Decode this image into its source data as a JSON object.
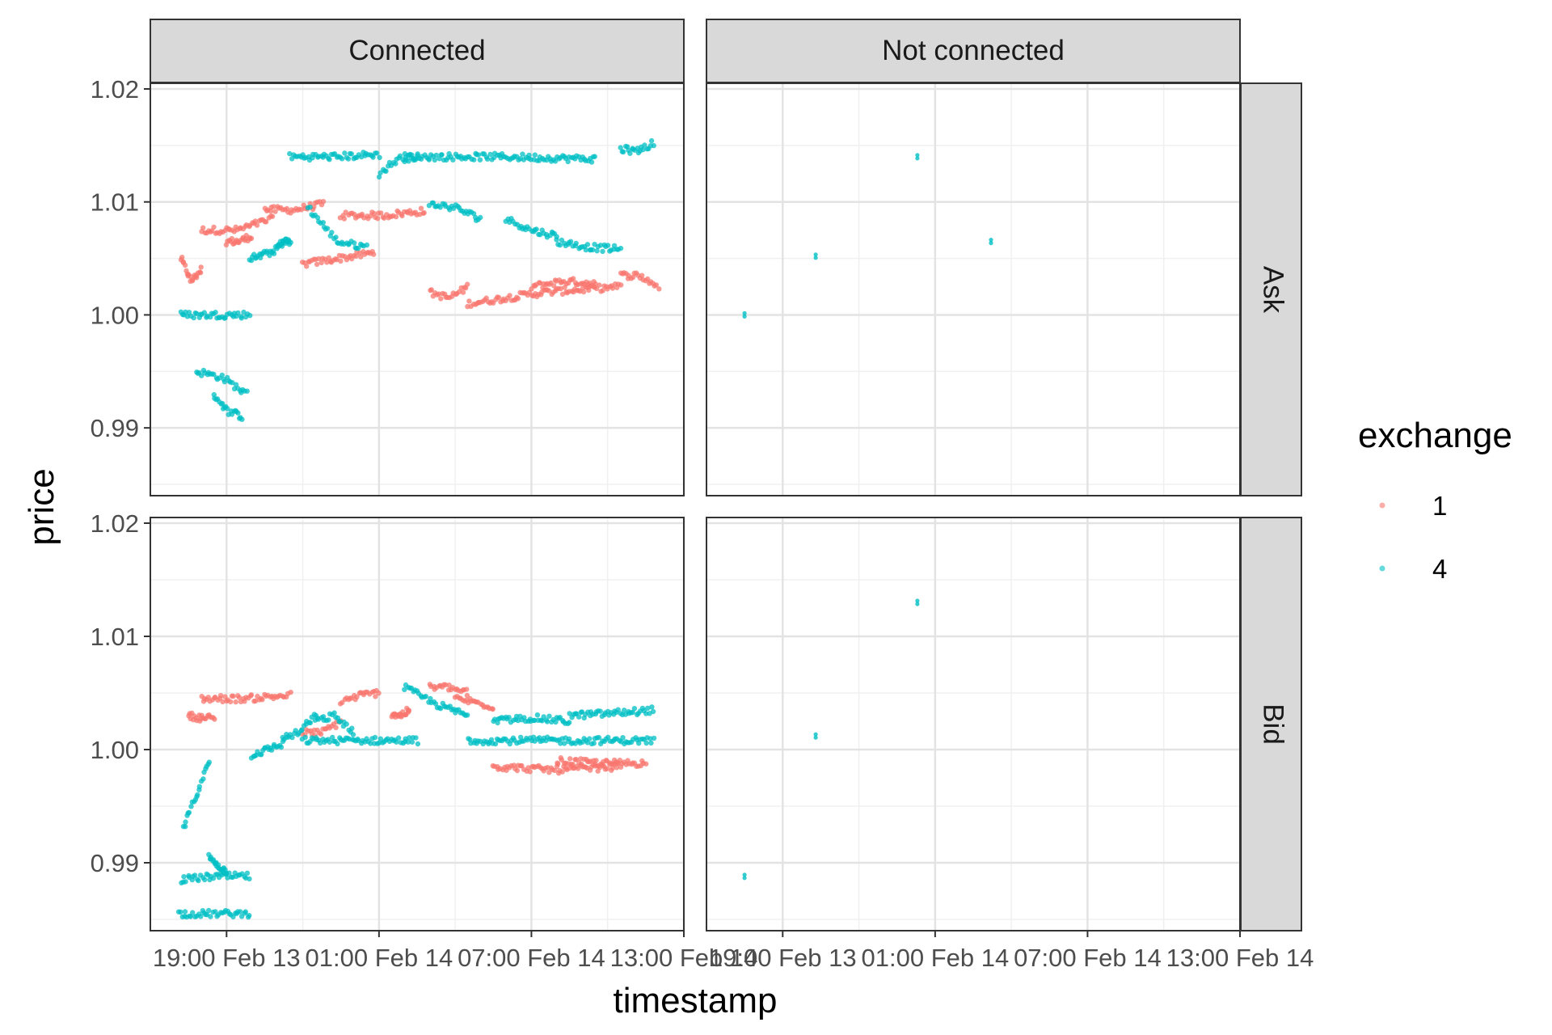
{
  "chart_data": {
    "type": "scatter",
    "facet_columns": [
      "Connected",
      "Not connected"
    ],
    "facet_rows": [
      "Ask",
      "Bid"
    ],
    "xlabel": "timestamp",
    "ylabel": "price",
    "x_ticks": [
      "19:00 Feb 13",
      "01:00 Feb 14",
      "07:00 Feb 14",
      "13:00 Feb 14"
    ],
    "y_ticks": [
      "0.99",
      "1.00",
      "1.01",
      "1.02"
    ],
    "ylim": [
      0.984,
      1.0205
    ],
    "legend": {
      "title": "exchange",
      "position": "right",
      "entries": [
        {
          "name": "1",
          "color": "#F8766D"
        },
        {
          "name": "4",
          "color": "#00BFC4"
        }
      ]
    },
    "panels": [
      {
        "col": "Connected",
        "row": "Ask",
        "series": [
          {
            "name": "1",
            "segments": [
              [
                0.2,
                1.005,
                1.0,
                1.003,
                1.004
              ],
              [
                1.0,
                1.0075,
                3.8,
                1.0075,
                1.0085
              ],
              [
                2.0,
                1.0065,
                3.0,
                1.0065,
                1.007
              ],
              [
                3.5,
                1.0093,
                5.8,
                1.0093,
                1.0098
              ],
              [
                5.0,
                1.0045,
                7.8,
                1.005,
                1.0055
              ],
              [
                6.5,
                1.0088,
                9.8,
                1.0088,
                1.0092
              ],
              [
                10.0,
                1.002,
                11.5,
                1.0015,
                1.0025
              ],
              [
                11.5,
                1.001,
                17.5,
                1.002,
                1.0025
              ],
              [
                14.0,
                1.0025,
                16.5,
                1.003,
                1.0028
              ],
              [
                17.5,
                1.0035,
                19.0,
                1.0035,
                1.0025
              ]
            ]
          },
          {
            "name": "4",
            "segments": [
              [
                0.2,
                1.0,
                2.9,
                1.0,
                1.0
              ],
              [
                0.8,
                0.995,
                2.8,
                0.9945,
                0.993
              ],
              [
                1.5,
                0.993,
                2.6,
                0.9915,
                0.991
              ],
              [
                2.9,
                1.005,
                4.0,
                1.0053,
                1.0058
              ],
              [
                4.0,
                1.006,
                4.5,
                1.0065,
                1.0065
              ],
              [
                4.5,
                1.014,
                8.0,
                1.014,
                1.0142
              ],
              [
                5.2,
                1.0095,
                7.5,
                1.0065,
                1.006
              ],
              [
                8.0,
                1.0125,
                9.5,
                1.0138,
                1.014
              ],
              [
                9.0,
                1.014,
                16.5,
                1.014,
                1.0138
              ],
              [
                10.0,
                1.0098,
                12.0,
                1.0095,
                1.0085
              ],
              [
                13.0,
                1.0085,
                15.0,
                1.0075,
                1.007
              ],
              [
                15.0,
                1.0065,
                17.5,
                1.006,
                1.0058
              ],
              [
                17.5,
                1.0147,
                18.8,
                1.0145,
                1.0152
              ]
            ]
          }
        ]
      },
      {
        "col": "Connected",
        "row": "Bid",
        "series": [
          {
            "name": "1",
            "segments": [
              [
                0.5,
                1.003,
                1.5,
                1.0028,
                1.0028
              ],
              [
                1.0,
                1.0045,
                4.5,
                1.0045,
                1.0048
              ],
              [
                5.0,
                1.0015,
                6.5,
                1.0015,
                1.0025
              ],
              [
                6.5,
                1.0042,
                8.0,
                1.0048,
                1.005
              ],
              [
                8.5,
                1.0032,
                9.2,
                1.003,
                1.0035
              ],
              [
                10.0,
                1.0055,
                11.5,
                1.0055,
                1.005
              ],
              [
                11.0,
                1.0045,
                12.5,
                1.0042,
                1.0038
              ],
              [
                12.5,
                0.9985,
                17.5,
                0.9982,
                0.9985
              ],
              [
                15.0,
                0.999,
                18.5,
                0.9988,
                0.9988
              ]
            ]
          },
          {
            "name": "4",
            "segments": [
              [
                0.1,
                0.9855,
                2.9,
                0.9855,
                0.9855
              ],
              [
                0.2,
                0.9885,
                2.9,
                0.9888,
                0.9888
              ],
              [
                0.3,
                0.993,
                1.3,
                0.996,
                0.999
              ],
              [
                1.3,
                0.9905,
                2.0,
                0.9898,
                0.9892
              ],
              [
                3.0,
                0.9995,
                4.2,
                1.0,
                1.0005
              ],
              [
                4.2,
                1.001,
                5.5,
                1.0015,
                1.003
              ],
              [
                5.0,
                1.0008,
                9.5,
                1.0008,
                1.0008
              ],
              [
                5.5,
                1.0025,
                7.0,
                1.003,
                1.0015
              ],
              [
                9.0,
                1.0055,
                11.5,
                1.004,
                1.003
              ],
              [
                11.5,
                1.0008,
                18.8,
                1.0008,
                1.0008
              ],
              [
                12.5,
                1.0025,
                15.5,
                1.0028,
                1.0025
              ],
              [
                15.5,
                1.003,
                18.8,
                1.0032,
                1.0035
              ]
            ]
          }
        ]
      },
      {
        "col": "Not connected",
        "row": "Ask",
        "points": [
          {
            "series": "4",
            "x": 0.5,
            "y": 1.0
          },
          {
            "series": "4",
            "x": 3.3,
            "y": 1.0052
          },
          {
            "series": "4",
            "x": 7.3,
            "y": 1.014
          },
          {
            "series": "4",
            "x": 10.2,
            "y": 1.0065
          }
        ]
      },
      {
        "col": "Not connected",
        "row": "Bid",
        "points": [
          {
            "series": "4",
            "x": 0.5,
            "y": 0.9888
          },
          {
            "series": "4",
            "x": 3.3,
            "y": 1.0012
          },
          {
            "series": "4",
            "x": 7.3,
            "y": 1.013
          }
        ]
      }
    ]
  }
}
